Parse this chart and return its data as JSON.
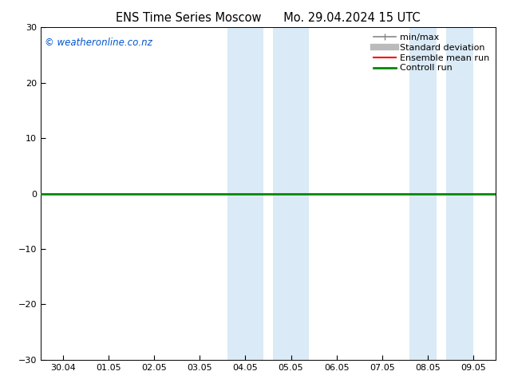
{
  "title": "ENS Time Series Moscow      Mo. 29.04.2024 15 UTC",
  "ylim": [
    -30,
    30
  ],
  "yticks": [
    -30,
    -20,
    -10,
    0,
    10,
    20,
    30
  ],
  "xtick_labels": [
    "30.04",
    "01.05",
    "02.05",
    "03.05",
    "04.05",
    "05.05",
    "06.05",
    "07.05",
    "08.05",
    "09.05"
  ],
  "shaded_bands": [
    {
      "xmin": 3.6,
      "xmax": 4.4,
      "color": "#daeaf6"
    },
    {
      "xmin": 4.6,
      "xmax": 5.4,
      "color": "#daeaf6"
    },
    {
      "xmin": 7.6,
      "xmax": 8.2,
      "color": "#daeaf6"
    },
    {
      "xmin": 8.4,
      "xmax": 9.0,
      "color": "#daeaf6"
    }
  ],
  "zero_line_color": "#00aa00",
  "background_color": "#ffffff",
  "plot_background": "#ffffff",
  "watermark": "© weatheronline.co.nz",
  "watermark_color": "#0055cc",
  "legend_items": [
    {
      "label": "min/max",
      "color": "#888888",
      "lw": 1.2
    },
    {
      "label": "Standard deviation",
      "color": "#bbbbbb",
      "lw": 6
    },
    {
      "label": "Ensemble mean run",
      "color": "#ff0000",
      "lw": 1.5
    },
    {
      "label": "Controll run",
      "color": "#008800",
      "lw": 2
    }
  ],
  "title_fontsize": 10.5,
  "tick_fontsize": 8,
  "legend_fontsize": 8,
  "watermark_fontsize": 8.5
}
